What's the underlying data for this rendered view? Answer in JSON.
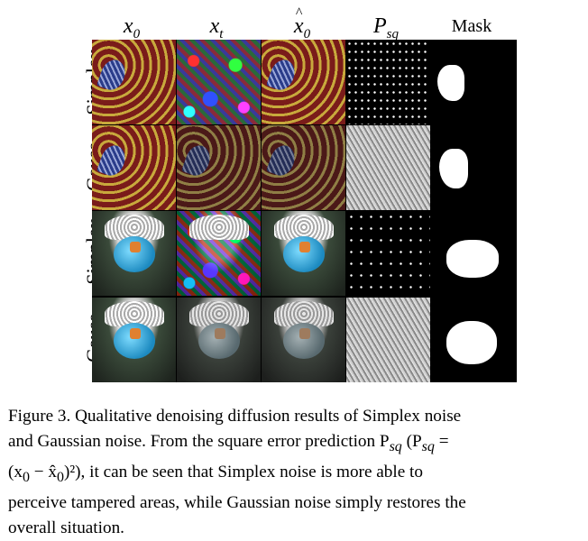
{
  "columns": {
    "x0": {
      "base": "x",
      "sub": "0"
    },
    "xt": {
      "base": "x",
      "sub": "t"
    },
    "x0hat": {
      "base": "x",
      "sub": "0"
    },
    "psq": {
      "base": "P",
      "sub": "sq"
    },
    "mask": "Mask"
  },
  "rows": [
    "Simplex",
    "Gauss",
    "Simplex",
    "Gauss"
  ],
  "caption": {
    "lines": [
      "Figure 3. Qualitative denoising diffusion results of Simplex noise",
      "and Gaussian noise. From the square error prediction P",
      "(x",
      "), it can be seen that Simplex noise is more able to",
      "perceive tampered areas, while Gaussian noise simply restores the",
      "overall situation."
    ],
    "sub_sq": "sq",
    "psq_eq": "(P",
    "eq_rhs": " =",
    "minus": " − x̂",
    "zero": "0",
    "sq_close": ")²"
  }
}
